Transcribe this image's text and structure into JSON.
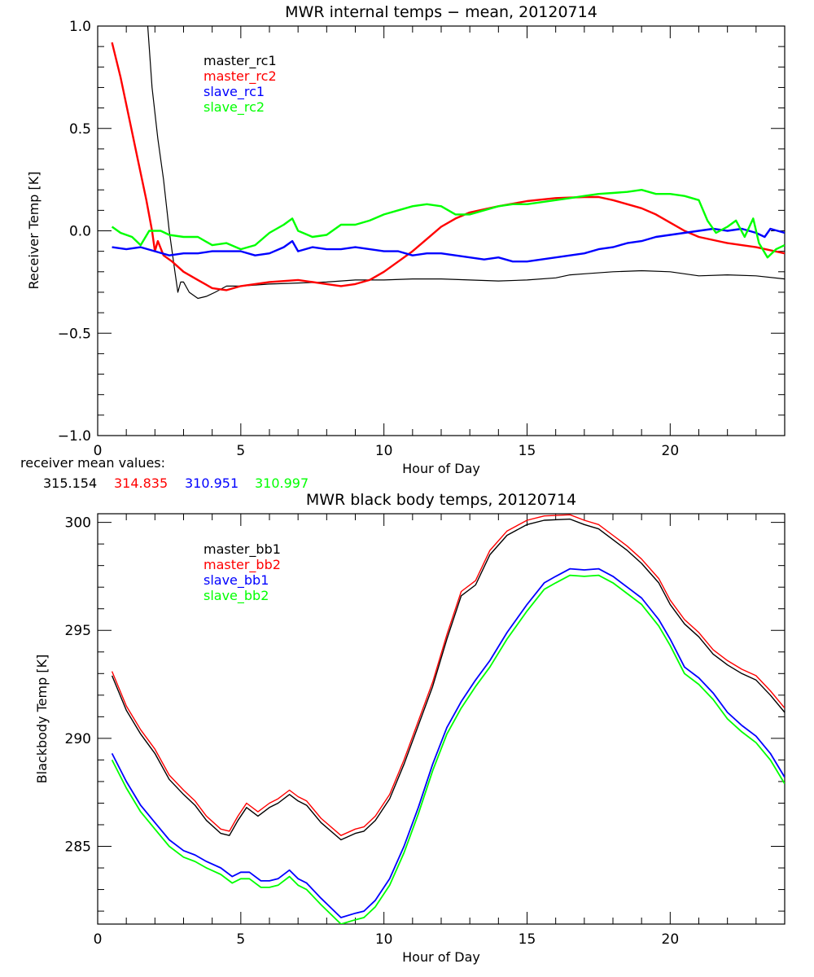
{
  "chart_data": [
    {
      "type": "line",
      "title": "MWR internal temps − mean, 20120714",
      "xlabel": "Hour of Day",
      "ylabel": "Receiver Temp [K]",
      "xlim": [
        0,
        24
      ],
      "ylim": [
        -1.0,
        1.0
      ],
      "xticks": [
        0,
        5,
        10,
        15,
        20
      ],
      "xtick_labels": [
        "0",
        "5",
        "10",
        "15",
        "20"
      ],
      "yticks": [
        -1.0,
        -0.5,
        0.0,
        0.5,
        1.0
      ],
      "ytick_labels": [
        "−1.0",
        "−0.5",
        "0.0",
        "0.5",
        "1.0"
      ],
      "grid": false,
      "legend_placement": "top-left (inside)",
      "series": [
        {
          "name": "master_rc1",
          "color": "#000000",
          "x": [
            1.75,
            1.9,
            2.1,
            2.3,
            2.5,
            2.7,
            2.8,
            2.9,
            3.0,
            3.2,
            3.5,
            3.8,
            4.1,
            4.5,
            5.0,
            6.0,
            7.0,
            8.0,
            9.0,
            10.0,
            11.0,
            12.0,
            13.0,
            14.0,
            15.0,
            16.0,
            16.5,
            17.0,
            18.0,
            19.0,
            20.0,
            21.0,
            22.0,
            23.0,
            24.0
          ],
          "y": [
            1.0,
            0.7,
            0.45,
            0.25,
            0.0,
            -0.2,
            -0.3,
            -0.25,
            -0.25,
            -0.3,
            -0.33,
            -0.32,
            -0.3,
            -0.27,
            -0.27,
            -0.26,
            -0.255,
            -0.25,
            -0.24,
            -0.24,
            -0.235,
            -0.235,
            -0.24,
            -0.245,
            -0.24,
            -0.23,
            -0.215,
            -0.21,
            -0.2,
            -0.195,
            -0.2,
            -0.22,
            -0.215,
            -0.22,
            -0.235
          ]
        },
        {
          "name": "master_rc2",
          "color": "#ff0000",
          "x": [
            0.5,
            0.8,
            1.1,
            1.4,
            1.7,
            1.9,
            2.0,
            2.1,
            2.3,
            2.6,
            3.0,
            3.5,
            4.0,
            4.5,
            5.0,
            6.0,
            7.0,
            8.0,
            8.5,
            9.0,
            9.5,
            10.0,
            10.5,
            11.0,
            11.5,
            12.0,
            12.5,
            13.0,
            14.0,
            15.0,
            16.0,
            17.0,
            17.5,
            18.0,
            18.5,
            19.0,
            19.5,
            20.0,
            20.5,
            21.0,
            22.0,
            23.0,
            24.0
          ],
          "y": [
            0.92,
            0.75,
            0.55,
            0.35,
            0.15,
            0.0,
            -0.1,
            -0.05,
            -0.12,
            -0.15,
            -0.2,
            -0.24,
            -0.28,
            -0.29,
            -0.27,
            -0.25,
            -0.24,
            -0.26,
            -0.27,
            -0.26,
            -0.24,
            -0.2,
            -0.15,
            -0.1,
            -0.04,
            0.02,
            0.06,
            0.09,
            0.12,
            0.145,
            0.16,
            0.165,
            0.165,
            0.15,
            0.13,
            0.11,
            0.08,
            0.04,
            0.0,
            -0.03,
            -0.06,
            -0.08,
            -0.11
          ]
        },
        {
          "name": "slave_rc1",
          "color": "#0000ff",
          "x": [
            0.5,
            1.0,
            1.5,
            2.0,
            2.5,
            3.0,
            3.5,
            4.0,
            4.5,
            5.0,
            5.5,
            6.0,
            6.5,
            6.8,
            7.0,
            7.5,
            8.0,
            8.5,
            9.0,
            9.5,
            10.0,
            10.5,
            11.0,
            11.5,
            12.0,
            12.5,
            13.0,
            13.5,
            14.0,
            14.5,
            15.0,
            15.5,
            16.0,
            16.5,
            17.0,
            17.5,
            18.0,
            18.5,
            19.0,
            19.5,
            20.0,
            20.5,
            21.0,
            21.5,
            22.0,
            22.5,
            23.0,
            23.3,
            23.5,
            24.0
          ],
          "y": [
            -0.08,
            -0.09,
            -0.08,
            -0.1,
            -0.12,
            -0.11,
            -0.11,
            -0.1,
            -0.1,
            -0.1,
            -0.12,
            -0.11,
            -0.08,
            -0.05,
            -0.1,
            -0.08,
            -0.09,
            -0.09,
            -0.08,
            -0.09,
            -0.1,
            -0.1,
            -0.12,
            -0.11,
            -0.11,
            -0.12,
            -0.13,
            -0.14,
            -0.13,
            -0.15,
            -0.15,
            -0.14,
            -0.13,
            -0.12,
            -0.11,
            -0.09,
            -0.08,
            -0.06,
            -0.05,
            -0.03,
            -0.02,
            -0.01,
            0.0,
            0.01,
            0.0,
            0.01,
            -0.01,
            -0.03,
            0.01,
            -0.01
          ]
        },
        {
          "name": "slave_rc2",
          "color": "#00ff00",
          "x": [
            0.5,
            0.8,
            1.2,
            1.5,
            1.8,
            2.2,
            2.5,
            3.0,
            3.5,
            4.0,
            4.5,
            5.0,
            5.5,
            6.0,
            6.5,
            6.8,
            7.0,
            7.5,
            8.0,
            8.5,
            9.0,
            9.5,
            10.0,
            10.5,
            11.0,
            11.5,
            12.0,
            12.5,
            13.0,
            13.5,
            14.0,
            14.5,
            15.0,
            15.5,
            16.0,
            16.5,
            17.0,
            17.5,
            18.0,
            18.5,
            19.0,
            19.5,
            20.0,
            20.5,
            21.0,
            21.3,
            21.6,
            22.0,
            22.3,
            22.6,
            22.9,
            23.1,
            23.4,
            23.7,
            24.0
          ],
          "y": [
            0.02,
            -0.01,
            -0.03,
            -0.07,
            0.0,
            0.0,
            -0.02,
            -0.03,
            -0.03,
            -0.07,
            -0.06,
            -0.09,
            -0.07,
            -0.01,
            0.03,
            0.06,
            0.0,
            -0.03,
            -0.02,
            0.03,
            0.03,
            0.05,
            0.08,
            0.1,
            0.12,
            0.13,
            0.12,
            0.08,
            0.08,
            0.1,
            0.12,
            0.13,
            0.13,
            0.14,
            0.15,
            0.16,
            0.17,
            0.18,
            0.185,
            0.19,
            0.2,
            0.18,
            0.18,
            0.17,
            0.15,
            0.05,
            -0.01,
            0.02,
            0.05,
            -0.03,
            0.06,
            -0.06,
            -0.13,
            -0.09,
            -0.07
          ]
        }
      ],
      "annotations": {
        "label": "receiver mean values:",
        "values": [
          {
            "text": "315.154",
            "color": "#000000"
          },
          {
            "text": "314.835",
            "color": "#ff0000"
          },
          {
            "text": "310.951",
            "color": "#0000ff"
          },
          {
            "text": "310.997",
            "color": "#00ff00"
          }
        ]
      }
    },
    {
      "type": "line",
      "title": "MWR black body temps, 20120714",
      "xlabel": "Hour of Day",
      "ylabel": "Blackbody Temp [K]",
      "xlim": [
        0,
        24
      ],
      "ylim": [
        281.4,
        300.4
      ],
      "xticks": [
        0,
        5,
        10,
        15,
        20
      ],
      "xtick_labels": [
        "0",
        "5",
        "10",
        "15",
        "20"
      ],
      "yticks": [
        285,
        290,
        295,
        300
      ],
      "ytick_labels": [
        "285",
        "290",
        "295",
        "300"
      ],
      "grid": false,
      "legend_placement": "top-left (inside)",
      "series": [
        {
          "name": "master_bb1",
          "color": "#000000",
          "x": [
            0.5,
            1.0,
            1.5,
            2.0,
            2.5,
            3.0,
            3.4,
            3.8,
            4.3,
            4.6,
            4.9,
            5.2,
            5.6,
            6.0,
            6.3,
            6.7,
            7.0,
            7.3,
            7.8,
            8.5,
            9.0,
            9.3,
            9.7,
            10.2,
            10.7,
            11.2,
            11.7,
            12.2,
            12.7,
            13.2,
            13.7,
            14.3,
            15.0,
            15.6,
            16.5,
            17.0,
            17.5,
            18.0,
            18.5,
            19.0,
            19.6,
            20.0,
            20.5,
            21.0,
            21.5,
            22.0,
            22.5,
            23.0,
            23.5,
            24.0
          ],
          "y": [
            292.9,
            291.3,
            290.2,
            289.3,
            288.1,
            287.4,
            286.9,
            286.2,
            285.6,
            285.5,
            286.2,
            286.8,
            286.4,
            286.8,
            287.0,
            287.4,
            287.1,
            286.9,
            286.1,
            285.3,
            285.6,
            285.7,
            286.2,
            287.2,
            288.8,
            290.6,
            292.4,
            294.6,
            296.6,
            297.1,
            298.5,
            299.4,
            299.9,
            300.1,
            300.15,
            299.9,
            299.7,
            299.2,
            298.7,
            298.1,
            297.2,
            296.2,
            295.3,
            294.7,
            293.9,
            293.4,
            293.0,
            292.7,
            292.0,
            291.2
          ]
        },
        {
          "name": "master_bb2",
          "color": "#ff0000",
          "x": [
            0.5,
            1.0,
            1.5,
            2.0,
            2.5,
            3.0,
            3.4,
            3.8,
            4.3,
            4.6,
            4.9,
            5.2,
            5.6,
            6.0,
            6.3,
            6.7,
            7.0,
            7.3,
            7.8,
            8.5,
            9.0,
            9.3,
            9.7,
            10.2,
            10.7,
            11.2,
            11.7,
            12.2,
            12.7,
            13.2,
            13.7,
            14.3,
            15.0,
            15.6,
            16.5,
            17.0,
            17.5,
            18.0,
            18.5,
            19.0,
            19.6,
            20.0,
            20.5,
            21.0,
            21.5,
            22.0,
            22.5,
            23.0,
            23.5,
            24.0
          ],
          "y": [
            293.1,
            291.5,
            290.4,
            289.5,
            288.3,
            287.6,
            287.1,
            286.4,
            285.8,
            285.7,
            286.4,
            287.0,
            286.6,
            287.0,
            287.2,
            287.6,
            287.3,
            287.1,
            286.3,
            285.5,
            285.8,
            285.9,
            286.4,
            287.4,
            289.0,
            290.8,
            292.6,
            294.8,
            296.8,
            297.3,
            298.7,
            299.6,
            300.1,
            300.3,
            300.35,
            300.1,
            299.9,
            299.4,
            298.9,
            298.3,
            297.4,
            296.4,
            295.5,
            294.9,
            294.1,
            293.6,
            293.2,
            292.9,
            292.2,
            291.4
          ]
        },
        {
          "name": "slave_bb1",
          "color": "#0000ff",
          "x": [
            0.5,
            1.0,
            1.5,
            2.0,
            2.5,
            3.0,
            3.4,
            3.8,
            4.3,
            4.7,
            5.0,
            5.3,
            5.7,
            6.0,
            6.3,
            6.7,
            7.0,
            7.3,
            7.8,
            8.5,
            9.0,
            9.3,
            9.7,
            10.2,
            10.7,
            11.2,
            11.7,
            12.2,
            12.7,
            13.2,
            13.7,
            14.3,
            15.0,
            15.6,
            16.0,
            16.5,
            17.0,
            17.5,
            18.0,
            18.5,
            19.0,
            19.6,
            20.0,
            20.5,
            21.0,
            21.5,
            22.0,
            22.5,
            23.0,
            23.5,
            24.0
          ],
          "y": [
            289.3,
            288.0,
            286.9,
            286.1,
            285.3,
            284.8,
            284.6,
            284.3,
            284.0,
            283.6,
            283.8,
            283.8,
            283.4,
            283.4,
            283.5,
            283.9,
            283.5,
            283.3,
            282.6,
            281.7,
            281.9,
            282.0,
            282.5,
            283.5,
            285.0,
            286.8,
            288.8,
            290.5,
            291.7,
            292.7,
            293.6,
            294.9,
            296.2,
            297.2,
            297.5,
            297.85,
            297.8,
            297.85,
            297.5,
            297.0,
            296.5,
            295.5,
            294.6,
            293.3,
            292.8,
            292.1,
            291.2,
            290.6,
            290.1,
            289.3,
            288.2
          ]
        },
        {
          "name": "slave_bb2",
          "color": "#00ff00",
          "x": [
            0.5,
            1.0,
            1.5,
            2.0,
            2.5,
            3.0,
            3.4,
            3.8,
            4.3,
            4.7,
            5.0,
            5.3,
            5.7,
            6.0,
            6.3,
            6.7,
            7.0,
            7.3,
            7.8,
            8.5,
            9.0,
            9.3,
            9.7,
            10.2,
            10.7,
            11.2,
            11.7,
            12.2,
            12.7,
            13.2,
            13.7,
            14.3,
            15.0,
            15.6,
            16.0,
            16.5,
            17.0,
            17.5,
            18.0,
            18.5,
            19.0,
            19.6,
            20.0,
            20.5,
            21.0,
            21.5,
            22.0,
            22.5,
            23.0,
            23.5,
            24.0
          ],
          "y": [
            289.0,
            287.7,
            286.6,
            285.8,
            285.0,
            284.5,
            284.3,
            284.0,
            283.7,
            283.3,
            283.5,
            283.5,
            283.1,
            283.1,
            283.2,
            283.6,
            283.2,
            283.0,
            282.3,
            281.4,
            281.6,
            281.7,
            282.2,
            283.2,
            284.7,
            286.5,
            288.5,
            290.2,
            291.4,
            292.4,
            293.3,
            294.6,
            295.9,
            296.9,
            297.2,
            297.55,
            297.5,
            297.55,
            297.2,
            296.7,
            296.2,
            295.2,
            294.3,
            293.0,
            292.5,
            291.8,
            290.9,
            290.3,
            289.8,
            289.0,
            287.9
          ]
        }
      ]
    }
  ]
}
